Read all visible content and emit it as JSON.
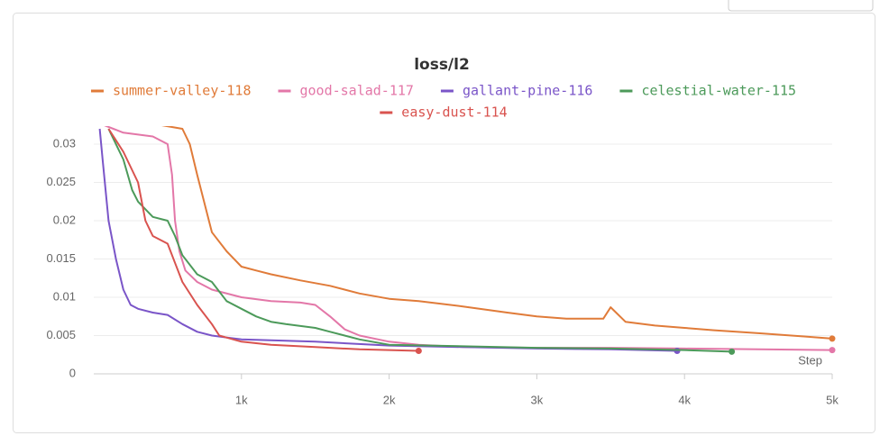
{
  "chart_data": {
    "type": "line",
    "title": "loss/l2",
    "xlabel": "Step",
    "xlim": [
      0,
      5000
    ],
    "ylim": [
      0,
      0.032
    ],
    "xticks": [
      {
        "value": 1000,
        "label": "1k"
      },
      {
        "value": 2000,
        "label": "2k"
      },
      {
        "value": 3000,
        "label": "3k"
      },
      {
        "value": 4000,
        "label": "4k"
      },
      {
        "value": 5000,
        "label": "5k"
      }
    ],
    "yticks": [
      0,
      0.005,
      0.01,
      0.015,
      0.02,
      0.025,
      0.03
    ],
    "grid": true,
    "series": [
      {
        "name": "summer-valley-118",
        "color": "#e07b39",
        "x": [
          0,
          300,
          600,
          650,
          700,
          800,
          900,
          1000,
          1100,
          1200,
          1400,
          1600,
          1800,
          2000,
          2200,
          2500,
          2800,
          3000,
          3200,
          3450,
          3500,
          3600,
          3800,
          4000,
          4200,
          4500,
          4800,
          5000
        ],
        "values": [
          0.034,
          0.033,
          0.032,
          0.03,
          0.026,
          0.0185,
          0.016,
          0.014,
          0.0135,
          0.013,
          0.0122,
          0.0115,
          0.0105,
          0.0098,
          0.0095,
          0.0088,
          0.008,
          0.0075,
          0.0072,
          0.0072,
          0.0087,
          0.0068,
          0.0063,
          0.006,
          0.0057,
          0.0053,
          0.0049,
          0.0046
        ]
      },
      {
        "name": "good-salad-117",
        "color": "#e377a8",
        "x": [
          0,
          200,
          400,
          500,
          530,
          550,
          580,
          620,
          700,
          800,
          1000,
          1200,
          1400,
          1500,
          1600,
          1700,
          1800,
          2000,
          2200,
          2500,
          3000,
          3500,
          4000,
          4500,
          5000
        ],
        "values": [
          0.033,
          0.0315,
          0.031,
          0.03,
          0.026,
          0.02,
          0.016,
          0.0135,
          0.012,
          0.011,
          0.01,
          0.0095,
          0.0093,
          0.009,
          0.0075,
          0.0058,
          0.005,
          0.0042,
          0.0038,
          0.0035,
          0.0034,
          0.0034,
          0.0033,
          0.0032,
          0.0031
        ]
      },
      {
        "name": "gallant-pine-116",
        "color": "#7a55c8",
        "x": [
          40,
          60,
          100,
          150,
          200,
          250,
          300,
          400,
          500,
          600,
          700,
          800,
          1000,
          1500,
          2000,
          2500,
          3000,
          3500,
          3950
        ],
        "values": [
          0.032,
          0.028,
          0.02,
          0.015,
          0.011,
          0.009,
          0.0085,
          0.008,
          0.0077,
          0.0065,
          0.0055,
          0.005,
          0.0045,
          0.0042,
          0.0037,
          0.0035,
          0.0033,
          0.0032,
          0.003
        ]
      },
      {
        "name": "celestial-water-115",
        "color": "#4c9a5a",
        "x": [
          100,
          200,
          260,
          300,
          400,
          500,
          550,
          600,
          700,
          800,
          900,
          1000,
          1100,
          1200,
          1300,
          1500,
          1600,
          1800,
          2000,
          2500,
          3000,
          3500,
          4000,
          4320
        ],
        "values": [
          0.032,
          0.028,
          0.024,
          0.0225,
          0.0205,
          0.02,
          0.018,
          0.0155,
          0.013,
          0.012,
          0.0095,
          0.0085,
          0.0075,
          0.0068,
          0.0065,
          0.006,
          0.0055,
          0.0045,
          0.0038,
          0.0036,
          0.0034,
          0.0033,
          0.0031,
          0.0029
        ]
      },
      {
        "name": "easy-dust-114",
        "color": "#d9534f",
        "x": [
          100,
          200,
          300,
          350,
          400,
          500,
          550,
          600,
          700,
          800,
          850,
          1000,
          1200,
          1500,
          1800,
          2000,
          2200
        ],
        "values": [
          0.032,
          0.029,
          0.025,
          0.02,
          0.018,
          0.017,
          0.0145,
          0.012,
          0.009,
          0.0065,
          0.005,
          0.0042,
          0.0038,
          0.0035,
          0.0032,
          0.0031,
          0.003
        ]
      }
    ]
  }
}
